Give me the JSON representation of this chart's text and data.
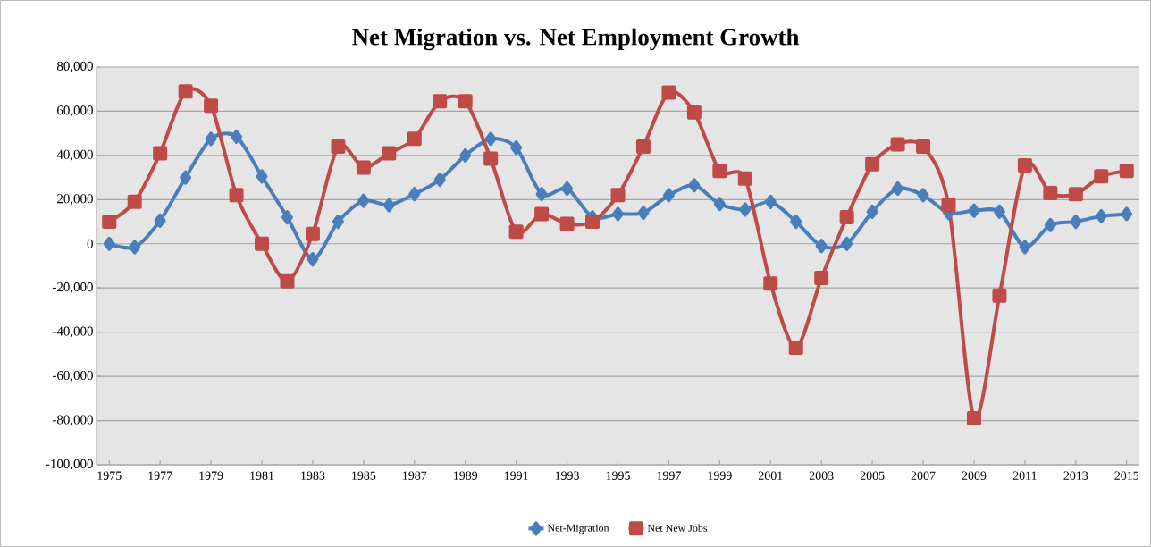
{
  "chart_data": {
    "type": "line",
    "title": "Net Migration vs. Net Employment Growth",
    "x": [
      1975,
      1976,
      1977,
      1978,
      1979,
      1980,
      1981,
      1982,
      1983,
      1984,
      1985,
      1986,
      1987,
      1988,
      1989,
      1990,
      1991,
      1992,
      1993,
      1994,
      1995,
      1996,
      1997,
      1998,
      1999,
      2000,
      2001,
      2002,
      2003,
      2004,
      2005,
      2006,
      2007,
      2008,
      2009,
      2010,
      2011,
      2012,
      2013,
      2014,
      2015
    ],
    "xlim": [
      1974.5,
      2015.5
    ],
    "xticks": [
      1975,
      1977,
      1979,
      1981,
      1983,
      1985,
      1987,
      1989,
      1991,
      1993,
      1995,
      1997,
      1999,
      2001,
      2003,
      2005,
      2007,
      2009,
      2011,
      2013,
      2015
    ],
    "series": [
      {
        "name": "Net-Migration",
        "color": "#4a7ebb",
        "marker": "diamond",
        "values": [
          0,
          -1500,
          10500,
          30000,
          47500,
          48500,
          30500,
          12000,
          -7000,
          10000,
          19500,
          17500,
          22500,
          29000,
          40000,
          47500,
          43500,
          22500,
          25000,
          12000,
          13500,
          14000,
          22000,
          26500,
          18000,
          15500,
          19000,
          10000,
          -1000,
          0,
          14500,
          25000,
          22000,
          14000,
          15000,
          14500,
          -1500,
          8500,
          10000,
          12500,
          13500
        ]
      },
      {
        "name": "Net New Jobs",
        "color": "#be4b48",
        "marker": "square",
        "values": [
          10000,
          19000,
          41000,
          69000,
          62500,
          22000,
          0,
          -17000,
          4500,
          44000,
          34500,
          41000,
          47500,
          64500,
          64500,
          38500,
          5500,
          13500,
          9000,
          10000,
          22000,
          44000,
          68500,
          59500,
          33000,
          29500,
          -18000,
          -47000,
          -15500,
          12000,
          36000,
          45000,
          44000,
          17500,
          -79000,
          -23500,
          35500,
          23000,
          22500,
          30500,
          33000
        ]
      }
    ],
    "ylim": [
      -100000,
      80000
    ],
    "yticks": [
      {
        "value": -100000,
        "label": "-100,000"
      },
      {
        "value": -80000,
        "label": "-80,000"
      },
      {
        "value": -60000,
        "label": "-60,000"
      },
      {
        "value": -40000,
        "label": "-40,000"
      },
      {
        "value": -20000,
        "label": "-20,000"
      },
      0,
      {
        "value": 20000,
        "label": "20,000"
      },
      {
        "value": 40000,
        "label": "40,000"
      },
      {
        "value": 60000,
        "label": "60,000"
      },
      {
        "value": 80000,
        "label": "80,000"
      }
    ],
    "grid": "y",
    "legend": "bottom",
    "line_style": "solid"
  }
}
